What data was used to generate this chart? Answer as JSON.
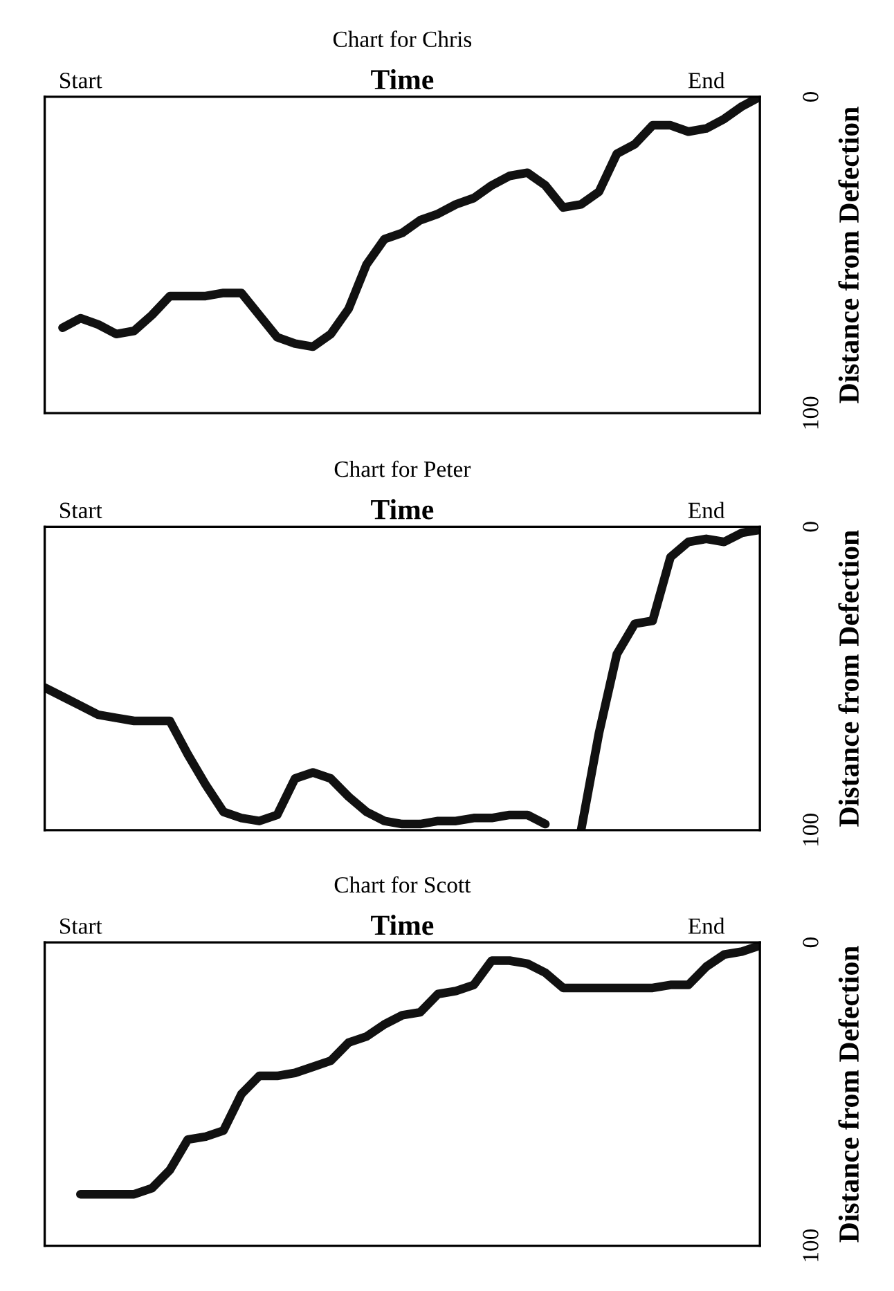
{
  "chart_data": [
    {
      "type": "line",
      "title": "Chart for Chris",
      "xlabel": "Time",
      "ylabel": "Distance from Defection",
      "categories": [
        null,
        null,
        "Start",
        null,
        null,
        null,
        null,
        null,
        null,
        null,
        null,
        null,
        null,
        null,
        null,
        null,
        null,
        null,
        null,
        null,
        null,
        null,
        null,
        null,
        null,
        null,
        null,
        null,
        null,
        null,
        null,
        null,
        null,
        null,
        null,
        null,
        null,
        "End",
        null,
        null,
        null
      ],
      "ylim": [
        100,
        0
      ],
      "yticks": [
        0,
        100
      ],
      "series": [
        {
          "color": "#111111",
          "values": [
            null,
            73,
            70,
            72,
            75,
            74,
            69,
            63,
            63,
            63,
            62,
            62,
            69,
            76,
            78,
            79,
            75,
            67,
            53,
            45,
            43,
            39,
            37,
            34,
            32,
            28,
            25,
            24,
            28,
            35,
            34,
            30,
            18,
            15,
            9,
            9,
            11,
            10,
            7,
            3,
            0
          ]
        }
      ]
    },
    {
      "type": "line",
      "title": "Chart for Peter",
      "xlabel": "Time",
      "ylabel": "Distance from Defection",
      "categories": [
        null,
        null,
        "Start",
        null,
        null,
        null,
        null,
        null,
        null,
        null,
        null,
        null,
        null,
        null,
        null,
        null,
        null,
        null,
        null,
        null,
        null,
        null,
        null,
        null,
        null,
        null,
        null,
        null,
        null,
        null,
        null,
        null,
        null,
        null,
        null,
        null,
        null,
        "End",
        null,
        null,
        null
      ],
      "ylim": [
        100,
        0
      ],
      "yticks": [
        0,
        100
      ],
      "series": [
        {
          "color": "#111111",
          "values": [
            53,
            56,
            59,
            62,
            63,
            64,
            64,
            64,
            75,
            85,
            94,
            96,
            97,
            95,
            83,
            81,
            83,
            89,
            94,
            97,
            98,
            98,
            97,
            97,
            96,
            96,
            95,
            95,
            98,
            null,
            100,
            68,
            42,
            32,
            31,
            10,
            5,
            4,
            5,
            2,
            1
          ]
        }
      ]
    },
    {
      "type": "line",
      "title": "Chart for Scott",
      "xlabel": "Time",
      "ylabel": "Distance from Defection",
      "categories": [
        null,
        null,
        "Start",
        null,
        null,
        null,
        null,
        null,
        null,
        null,
        null,
        null,
        null,
        null,
        null,
        null,
        null,
        null,
        null,
        null,
        null,
        null,
        null,
        null,
        null,
        null,
        null,
        null,
        null,
        null,
        null,
        null,
        null,
        null,
        null,
        null,
        null,
        "End",
        null,
        null,
        null
      ],
      "ylim": [
        100,
        0
      ],
      "yticks": [
        0,
        100
      ],
      "series": [
        {
          "color": "#111111",
          "values": [
            null,
            null,
            83,
            83,
            83,
            83,
            81,
            75,
            65,
            64,
            62,
            50,
            44,
            44,
            43,
            41,
            39,
            33,
            31,
            27,
            24,
            23,
            17,
            16,
            14,
            6,
            6,
            7,
            10,
            15,
            15,
            15,
            15,
            15,
            15,
            14,
            14,
            8,
            4,
            3,
            1
          ]
        }
      ]
    }
  ]
}
